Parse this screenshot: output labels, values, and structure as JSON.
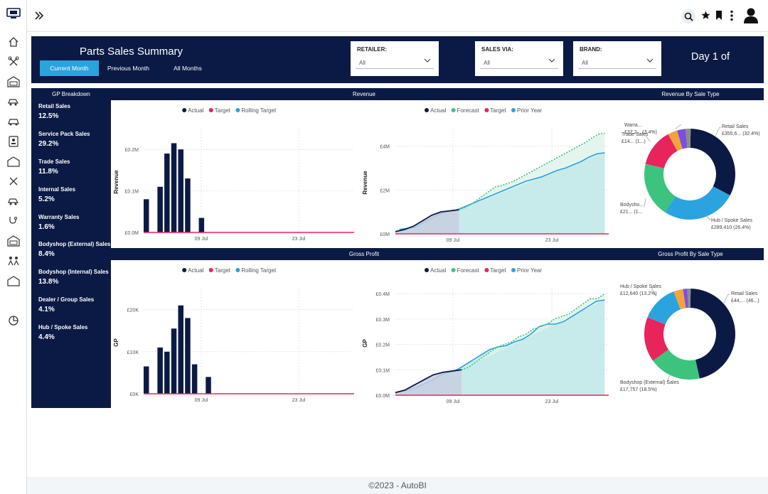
{
  "topbar": {
    "avatar_label": ""
  },
  "sidebar": {
    "items": [
      "monitor-icon",
      "home-icon",
      "tools-icon",
      "garage-icon",
      "car-crash-icon",
      "car-icon",
      "contact-card-icon",
      "warehouse-icon",
      "tools-2-icon",
      "car-crash-2-icon",
      "stethoscope-icon",
      "garage-2-icon",
      "people-icon",
      "warehouse-2-icon",
      "pie-chart-icon"
    ]
  },
  "header": {
    "title": "Parts Sales Summary",
    "tabs": [
      {
        "label": "Current Month",
        "active": true
      },
      {
        "label": "Previous Month",
        "active": false
      },
      {
        "label": "All Months",
        "active": false
      }
    ],
    "filters": [
      {
        "label": "RETAILER:",
        "value": "All"
      },
      {
        "label": "SALES VIA:",
        "value": "All"
      },
      {
        "label": "BRAND:",
        "value": "All"
      }
    ],
    "day": "Day 1 of"
  },
  "sections": {
    "gp_breakdown": "GP Breakdown",
    "revenue": "Revenue",
    "revenue_by_type": "Revenue By Sale Type",
    "gross_profit": "Gross Profit",
    "gp_by_type": "Gross Profit By Sale Type"
  },
  "gp_breakdown": [
    {
      "name": "Retail Sales",
      "value": "12.5%"
    },
    {
      "name": "Service Pack Sales",
      "value": "29.2%"
    },
    {
      "name": "Trade Sales",
      "value": "11.8%"
    },
    {
      "name": "Internal Sales",
      "value": "5.2%"
    },
    {
      "name": "Warranty Sales",
      "value": "1.6%"
    },
    {
      "name": "Bodyshop (External) Sales",
      "value": "8.4%"
    },
    {
      "name": "Bodyshop (Internal) Sales",
      "value": "13.8%"
    },
    {
      "name": "Dealer / Group Sales",
      "value": "4.1%"
    },
    {
      "name": "Hub / Spoke Sales",
      "value": "4.4%"
    }
  ],
  "colors": {
    "navy": "#0b1a45",
    "actual": "#0b1a45",
    "target": "#e8245c",
    "rolling": "#2aa3df",
    "forecast": "#3cc47e",
    "prior": "#2aa3df",
    "teal": "#bde6e8",
    "green": "#3cc47e",
    "orange": "#f2a33a",
    "purple": "#7b4fe0",
    "grey": "#8c8c8c"
  },
  "chart_data": [
    {
      "type": "bar",
      "ylabel": "Revenue",
      "legend": [
        "Actual",
        "Target",
        "Rolling Target"
      ],
      "yticks": [
        "£0.0M",
        "£0.1M",
        "£0.2M"
      ],
      "ylim": [
        0,
        0.25
      ],
      "xticks": [
        "09 Jul",
        "23 Jul"
      ],
      "values": [
        0.08,
        0,
        0.11,
        0.19,
        0.215,
        0.2,
        0.13,
        0,
        0.035
      ]
    },
    {
      "type": "area",
      "ylabel": "Revenue",
      "legend": [
        "Actual",
        "Forecast",
        "Target",
        "Prior Year"
      ],
      "yticks": [
        "£0M",
        "£2M",
        "£4M"
      ],
      "ylim": [
        0,
        4.8
      ],
      "xticks": [
        "09 Jul",
        "23 Jul"
      ],
      "actual": [
        0.1,
        0.2,
        0.35,
        0.6,
        0.85,
        1.0,
        1.05,
        1.1
      ],
      "prior_year": [
        0.2,
        0.25,
        0.3,
        0.5,
        0.7,
        0.9,
        1.0,
        1.05,
        1.2,
        1.35,
        1.5,
        1.65,
        1.8,
        1.95,
        2.1,
        2.25,
        2.4,
        2.5,
        2.6,
        2.75,
        2.9,
        3.0,
        3.15,
        3.3,
        3.5,
        3.65,
        3.7
      ],
      "forecast": [
        1.1,
        1.2,
        1.35,
        1.55,
        1.75,
        1.95,
        2.15,
        2.2,
        2.3,
        2.4,
        2.55,
        2.7,
        2.85,
        3.0,
        3.15,
        3.3,
        3.45,
        3.6,
        3.75,
        3.9,
        4.05,
        4.2,
        4.4,
        4.55,
        4.6
      ]
    },
    {
      "type": "donut",
      "title": "Revenue By Sale Type",
      "slices": [
        {
          "label": "Retail Sales",
          "detail": "£355,6... (32.4%)",
          "pct": 32.4,
          "color": "#0b1a45"
        },
        {
          "label": "Hub / Spoke Sales",
          "detail": "£289,410 (26.4%)",
          "pct": 26.4,
          "color": "#2aa3df"
        },
        {
          "label": "Bodysho...",
          "detail": "£21... (1...",
          "pct": 19.5,
          "color": "#3cc47e"
        },
        {
          "label": "Trade Sales",
          "detail": "£14... (1...)",
          "pct": 13.5,
          "color": "#e8245c"
        },
        {
          "label": "Warra...",
          "detail": "£37,2... (3.4%)",
          "pct": 3.4,
          "color": "#f2a33a"
        },
        {
          "label": "",
          "detail": "",
          "pct": 3.0,
          "color": "#7b4fe0"
        },
        {
          "label": "",
          "detail": "",
          "pct": 1.8,
          "color": "#8c8c8c"
        }
      ]
    },
    {
      "type": "bar",
      "ylabel": "GP",
      "legend": [
        "Actual",
        "Target",
        "Rolling Target"
      ],
      "yticks": [
        "£0K",
        "£10K",
        "£20K"
      ],
      "ylim": [
        0,
        25
      ],
      "xticks": [
        "09 Jul",
        "23 Jul"
      ],
      "values": [
        6.5,
        0,
        11,
        10,
        15.5,
        21,
        18,
        7,
        0,
        4
      ]
    },
    {
      "type": "area",
      "ylabel": "GP",
      "legend": [
        "Actual",
        "Forecast",
        "Target",
        "Prior Year"
      ],
      "yticks": [
        "£0.0M",
        "£0.1M",
        "£0.2M",
        "£0.3M",
        "£0.4M"
      ],
      "ylim": [
        0,
        0.42
      ],
      "xticks": [
        "09 Jul",
        "23 Jul"
      ],
      "actual": [
        0.01,
        0.02,
        0.04,
        0.06,
        0.08,
        0.09,
        0.095,
        0.1
      ],
      "prior_year": [
        0.015,
        0.02,
        0.03,
        0.045,
        0.06,
        0.08,
        0.09,
        0.1,
        0.12,
        0.14,
        0.16,
        0.18,
        0.19,
        0.195,
        0.21,
        0.22,
        0.24,
        0.27,
        0.28,
        0.28,
        0.29,
        0.31,
        0.33,
        0.35,
        0.37,
        0.375
      ],
      "forecast": [
        0.1,
        0.11,
        0.13,
        0.15,
        0.17,
        0.19,
        0.2,
        0.21,
        0.23,
        0.24,
        0.26,
        0.27,
        0.28,
        0.3,
        0.31,
        0.32,
        0.34,
        0.36,
        0.38,
        0.38,
        0.4
      ]
    },
    {
      "type": "donut",
      "title": "Gross Profit By Sale Type",
      "slices": [
        {
          "label": "Retail Sales",
          "detail": "£44,... (46...)",
          "pct": 46.2,
          "color": "#0b1a45"
        },
        {
          "label": "Bodyshop (External) Sales",
          "detail": "£17,757 (18.5%)",
          "pct": 18.5,
          "color": "#3cc47e"
        },
        {
          "label": "",
          "detail": "",
          "pct": 16.0,
          "color": "#e8245c"
        },
        {
          "label": "Hub / Spoke Sales",
          "detail": "£12,640 (13.2%)",
          "pct": 13.2,
          "color": "#2aa3df"
        },
        {
          "label": "",
          "detail": "",
          "pct": 3.4,
          "color": "#f2a33a"
        },
        {
          "label": "",
          "detail": "",
          "pct": 1.5,
          "color": "#7b4fe0"
        },
        {
          "label": "",
          "detail": "",
          "pct": 1.2,
          "color": "#8c8c8c"
        }
      ]
    }
  ],
  "footer": "©2023 - AutoBI"
}
